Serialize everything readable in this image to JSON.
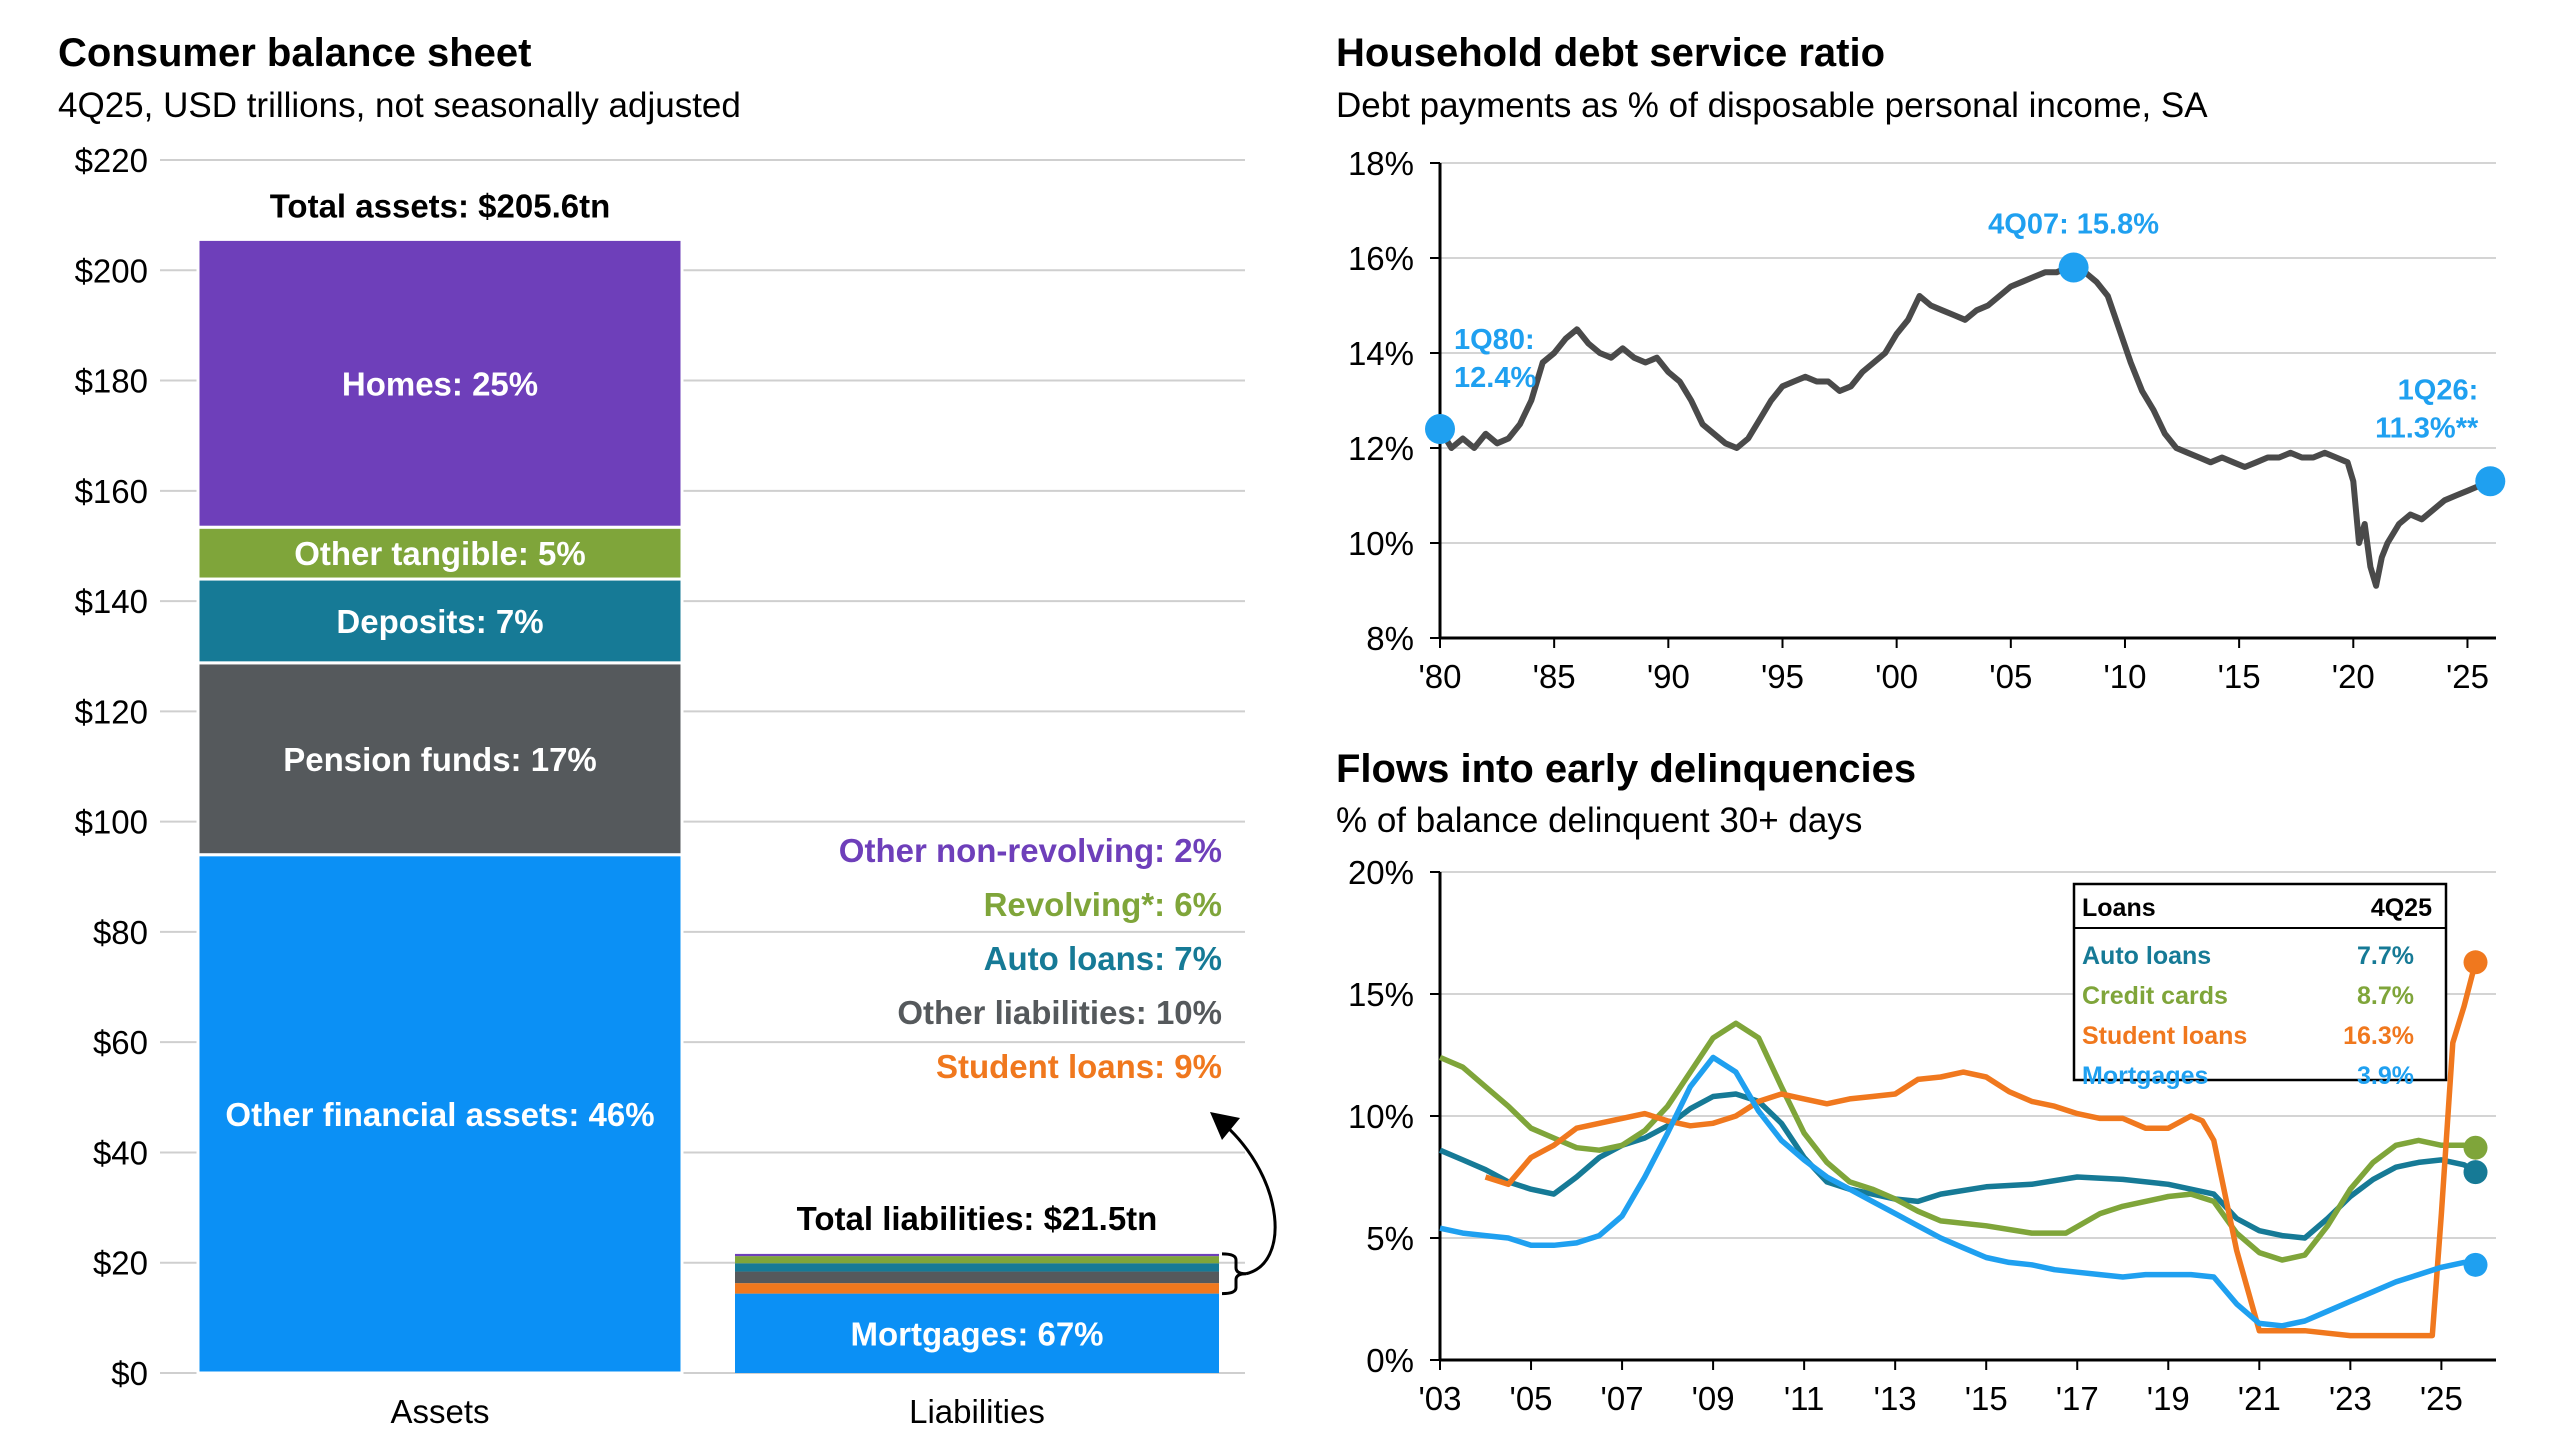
{
  "colors": {
    "purple": "#6e3fba",
    "green": "#7fa53a",
    "teal": "#167a96",
    "gray": "#55595c",
    "blue": "#0b90f5",
    "light_blue": "#1fa0f0",
    "orange": "#f0781e",
    "line_gray": "#4a4a4a",
    "grid": "#d0d0d0"
  },
  "chart_data": [
    {
      "type": "bar",
      "stacked": true,
      "title": "Consumer balance sheet",
      "subtitle": "4Q25, USD trillions, not seasonally adjusted",
      "categories": [
        "Assets",
        "Liabilities"
      ],
      "ylim": [
        0,
        220
      ],
      "ytick_labels": [
        "$0",
        "$20",
        "$40",
        "$60",
        "$80",
        "$100",
        "$120",
        "$140",
        "$160",
        "$180",
        "$200",
        "$220"
      ],
      "yticks": [
        0,
        20,
        40,
        60,
        80,
        100,
        120,
        140,
        160,
        180,
        200,
        220
      ],
      "grid": true,
      "assets_total_label": "Total assets: $205.6tn",
      "liabilities_total_label": "Total liabilities: $21.5tn",
      "assets": [
        {
          "name": "Other financial assets",
          "label": "Other financial assets: 46%",
          "value": 94.0,
          "color": "#0b90f5"
        },
        {
          "name": "Pension funds",
          "label": "Pension funds: 17%",
          "value": 34.8,
          "color": "#55595c"
        },
        {
          "name": "Deposits",
          "label": "Deposits: 7%",
          "value": 15.2,
          "color": "#167a96"
        },
        {
          "name": "Other tangible",
          "label": "Other tangible: 5%",
          "value": 9.4,
          "color": "#7fa53a"
        },
        {
          "name": "Homes",
          "label": "Homes: 25%",
          "value": 52.2,
          "color": "#6e3fba"
        }
      ],
      "liabilities": [
        {
          "name": "Mortgages",
          "label": "Mortgages: 67%",
          "value": 14.4,
          "color": "#0b90f5"
        },
        {
          "name": "Student loans",
          "label": "Student loans: 9%",
          "value": 1.9,
          "color": "#f0781e"
        },
        {
          "name": "Other liabilities",
          "label": "Other liabilities: 10%",
          "value": 2.1,
          "color": "#55595c"
        },
        {
          "name": "Auto loans",
          "label": "Auto loans: 7%",
          "value": 1.5,
          "color": "#167a96"
        },
        {
          "name": "Revolving*",
          "label": "Revolving*: 6%",
          "value": 1.3,
          "color": "#7fa53a"
        },
        {
          "name": "Other non-revolving",
          "label": "Other non-revolving: 2%",
          "value": 0.4,
          "color": "#6e3fba"
        }
      ]
    },
    {
      "type": "line",
      "title": "Household debt service ratio",
      "subtitle": "Debt payments as % of disposable personal income, SA",
      "xlim": [
        1980,
        2026.25
      ],
      "ylim": [
        8,
        18
      ],
      "xticks": [
        1980,
        1985,
        1990,
        1995,
        2000,
        2005,
        2010,
        2015,
        2020,
        2025
      ],
      "xtick_labels": [
        "'80",
        "'85",
        "'90",
        "'95",
        "'00",
        "'05",
        "'10",
        "'15",
        "'20",
        "'25"
      ],
      "yticks": [
        8,
        10,
        12,
        14,
        16,
        18
      ],
      "ytick_labels": [
        "8%",
        "10%",
        "12%",
        "14%",
        "16%",
        "18%"
      ],
      "series": [
        {
          "color": "#4a4a4a",
          "x": [
            1980.0,
            1980.5,
            1981.0,
            1981.5,
            1982.0,
            1982.5,
            1983.0,
            1983.5,
            1984.0,
            1984.5,
            1985.0,
            1985.5,
            1986.0,
            1986.5,
            1987.0,
            1987.5,
            1988.0,
            1988.5,
            1989.0,
            1989.5,
            1990.0,
            1990.5,
            1991.0,
            1991.5,
            1992.0,
            1992.5,
            1993.0,
            1993.5,
            1994.0,
            1994.5,
            1995.0,
            1995.5,
            1996.0,
            1996.5,
            1997.0,
            1997.5,
            1998.0,
            1998.5,
            1999.0,
            1999.5,
            2000.0,
            2000.5,
            2001.0,
            2001.5,
            2002.0,
            2002.5,
            2003.0,
            2003.5,
            2004.0,
            2004.5,
            2005.0,
            2005.5,
            2006.0,
            2006.5,
            2007.0,
            2007.5,
            2007.75,
            2008.25,
            2008.75,
            2009.25,
            2009.75,
            2010.25,
            2010.75,
            2011.25,
            2011.75,
            2012.25,
            2012.75,
            2013.25,
            2013.75,
            2014.25,
            2014.75,
            2015.25,
            2015.75,
            2016.25,
            2016.75,
            2017.25,
            2017.75,
            2018.25,
            2018.75,
            2019.25,
            2019.75,
            2020.0,
            2020.25,
            2020.5,
            2020.75,
            2021.0,
            2021.25,
            2021.5,
            2022.0,
            2022.5,
            2023.0,
            2023.5,
            2024.0,
            2024.5,
            2025.0,
            2025.5,
            2026.0
          ],
          "y": [
            12.4,
            12.0,
            12.2,
            12.0,
            12.3,
            12.1,
            12.2,
            12.5,
            13.0,
            13.8,
            14.0,
            14.3,
            14.5,
            14.2,
            14.0,
            13.9,
            14.1,
            13.9,
            13.8,
            13.9,
            13.6,
            13.4,
            13.0,
            12.5,
            12.3,
            12.1,
            12.0,
            12.2,
            12.6,
            13.0,
            13.3,
            13.4,
            13.5,
            13.4,
            13.4,
            13.2,
            13.3,
            13.6,
            13.8,
            14.0,
            14.4,
            14.7,
            15.2,
            15.0,
            14.9,
            14.8,
            14.7,
            14.9,
            15.0,
            15.2,
            15.4,
            15.5,
            15.6,
            15.7,
            15.7,
            15.8,
            15.8,
            15.7,
            15.5,
            15.2,
            14.5,
            13.8,
            13.2,
            12.8,
            12.3,
            12.0,
            11.9,
            11.8,
            11.7,
            11.8,
            11.7,
            11.6,
            11.7,
            11.8,
            11.8,
            11.9,
            11.8,
            11.8,
            11.9,
            11.8,
            11.7,
            11.3,
            10.0,
            10.4,
            9.5,
            9.1,
            9.7,
            10.0,
            10.4,
            10.6,
            10.5,
            10.7,
            10.9,
            11.0,
            11.1,
            11.2,
            11.3
          ]
        }
      ],
      "annotations": [
        {
          "label_lines": [
            "1Q80:",
            "12.4%"
          ],
          "x": 1980.0,
          "y": 12.4,
          "color": "#1fa0f0"
        },
        {
          "label_lines": [
            "4Q07:  15.8%"
          ],
          "x": 2007.75,
          "y": 15.8,
          "color": "#1fa0f0"
        },
        {
          "label_lines": [
            "1Q26:",
            "11.3%**"
          ],
          "x": 2026.0,
          "y": 11.3,
          "color": "#1fa0f0"
        }
      ]
    },
    {
      "type": "line",
      "title": "Flows into early delinquencies",
      "subtitle": "% of balance delinquent 30+ days",
      "xlim": [
        2003,
        2026.2
      ],
      "ylim": [
        0,
        20
      ],
      "xticks": [
        2003,
        2005,
        2007,
        2009,
        2011,
        2013,
        2015,
        2017,
        2019,
        2021,
        2023,
        2025
      ],
      "xtick_labels": [
        "'03",
        "'05",
        "'07",
        "'09",
        "'11",
        "'13",
        "'15",
        "'17",
        "'19",
        "'21",
        "'23",
        "'25"
      ],
      "yticks": [
        0,
        5,
        10,
        15,
        20
      ],
      "ytick_labels": [
        "0%",
        "5%",
        "10%",
        "15%",
        "20%"
      ],
      "legend": {
        "header": [
          "Loans",
          "4Q25"
        ],
        "rows": [
          {
            "name": "Auto loans",
            "value": "7.7%",
            "color": "#167a96"
          },
          {
            "name": "Credit cards",
            "value": "8.7%",
            "color": "#7fa53a"
          },
          {
            "name": "Student loans",
            "value": "16.3%",
            "color": "#f0781e"
          },
          {
            "name": "Mortgages",
            "value": "3.9%",
            "color": "#1fa0f0"
          }
        ]
      },
      "series": [
        {
          "name": "Auto loans",
          "color": "#167a96",
          "x": [
            2003.0,
            2003.5,
            2004.0,
            2004.5,
            2005.0,
            2005.5,
            2006.0,
            2006.5,
            2007.0,
            2007.5,
            2008.0,
            2008.5,
            2009.0,
            2009.5,
            2010.0,
            2010.5,
            2011.0,
            2011.5,
            2012.0,
            2012.5,
            2013.0,
            2013.5,
            2014.0,
            2015.0,
            2016.0,
            2017.0,
            2018.0,
            2019.0,
            2019.5,
            2020.0,
            2020.5,
            2021.0,
            2021.5,
            2022.0,
            2022.5,
            2023.0,
            2023.5,
            2024.0,
            2024.5,
            2025.0,
            2025.5,
            2025.75
          ],
          "y": [
            8.6,
            8.2,
            7.8,
            7.3,
            7.0,
            6.8,
            7.5,
            8.3,
            8.8,
            9.1,
            9.6,
            10.3,
            10.8,
            10.9,
            10.6,
            9.7,
            8.3,
            7.3,
            7.0,
            6.8,
            6.6,
            6.5,
            6.8,
            7.1,
            7.2,
            7.5,
            7.4,
            7.2,
            7.0,
            6.8,
            5.8,
            5.3,
            5.1,
            5.0,
            5.8,
            6.7,
            7.4,
            7.9,
            8.1,
            8.2,
            8.0,
            7.7
          ]
        },
        {
          "name": "Credit cards",
          "color": "#7fa53a",
          "x": [
            2003.0,
            2003.5,
            2004.0,
            2004.5,
            2005.0,
            2005.5,
            2006.0,
            2006.5,
            2007.0,
            2007.5,
            2008.0,
            2008.5,
            2009.0,
            2009.5,
            2010.0,
            2010.5,
            2011.0,
            2011.5,
            2012.0,
            2012.5,
            2013.0,
            2013.5,
            2014.0,
            2015.0,
            2016.0,
            2016.75,
            2017.5,
            2018.0,
            2019.0,
            2019.5,
            2020.0,
            2020.5,
            2021.0,
            2021.5,
            2022.0,
            2022.5,
            2023.0,
            2023.5,
            2024.0,
            2024.5,
            2025.0,
            2025.5,
            2025.75
          ],
          "y": [
            12.4,
            12.0,
            11.2,
            10.4,
            9.5,
            9.1,
            8.7,
            8.6,
            8.8,
            9.4,
            10.4,
            11.8,
            13.2,
            13.8,
            13.2,
            11.2,
            9.3,
            8.1,
            7.3,
            7.0,
            6.6,
            6.1,
            5.7,
            5.5,
            5.2,
            5.2,
            6.0,
            6.3,
            6.7,
            6.8,
            6.5,
            5.2,
            4.4,
            4.1,
            4.3,
            5.5,
            7.0,
            8.1,
            8.8,
            9.0,
            8.8,
            8.8,
            8.7
          ]
        },
        {
          "name": "Student loans",
          "color": "#f0781e",
          "x": [
            2004.0,
            2004.5,
            2005.0,
            2005.5,
            2006.0,
            2006.5,
            2007.0,
            2007.5,
            2008.0,
            2008.5,
            2009.0,
            2009.5,
            2010.0,
            2010.5,
            2011.0,
            2011.5,
            2012.0,
            2012.5,
            2013.0,
            2013.5,
            2014.0,
            2014.5,
            2015.0,
            2015.5,
            2016.0,
            2016.5,
            2017.0,
            2017.5,
            2018.0,
            2018.5,
            2019.0,
            2019.5,
            2019.75,
            2020.0,
            2020.5,
            2021.0,
            2021.5,
            2022.0,
            2022.5,
            2023.0,
            2023.5,
            2024.0,
            2024.5,
            2024.8,
            2025.0,
            2025.25,
            2025.5,
            2025.75
          ],
          "y": [
            7.5,
            7.2,
            8.3,
            8.8,
            9.5,
            9.7,
            9.9,
            10.1,
            9.8,
            9.6,
            9.7,
            10.0,
            10.6,
            10.9,
            10.7,
            10.5,
            10.7,
            10.8,
            10.9,
            11.5,
            11.6,
            11.8,
            11.6,
            11.0,
            10.6,
            10.4,
            10.1,
            9.9,
            9.9,
            9.5,
            9.5,
            10.0,
            9.8,
            9.0,
            4.5,
            1.2,
            1.2,
            1.2,
            1.1,
            1.0,
            1.0,
            1.0,
            1.0,
            1.0,
            6.0,
            13.0,
            14.5,
            16.3
          ]
        },
        {
          "name": "Mortgages",
          "color": "#1fa0f0",
          "x": [
            2003.0,
            2003.5,
            2004.0,
            2004.5,
            2005.0,
            2005.5,
            2006.0,
            2006.5,
            2007.0,
            2007.5,
            2008.0,
            2008.5,
            2009.0,
            2009.5,
            2010.0,
            2010.5,
            2011.0,
            2011.5,
            2012.0,
            2012.5,
            2013.0,
            2013.5,
            2014.0,
            2014.5,
            2015.0,
            2015.5,
            2016.0,
            2016.5,
            2017.0,
            2017.5,
            2018.0,
            2018.5,
            2019.0,
            2019.5,
            2020.0,
            2020.5,
            2021.0,
            2021.5,
            2022.0,
            2022.5,
            2023.0,
            2023.5,
            2024.0,
            2024.5,
            2025.0,
            2025.5,
            2025.75
          ],
          "y": [
            5.4,
            5.2,
            5.1,
            5.0,
            4.7,
            4.7,
            4.8,
            5.1,
            5.9,
            7.5,
            9.3,
            11.2,
            12.4,
            11.8,
            10.2,
            9.0,
            8.2,
            7.5,
            7.0,
            6.5,
            6.0,
            5.5,
            5.0,
            4.6,
            4.2,
            4.0,
            3.9,
            3.7,
            3.6,
            3.5,
            3.4,
            3.5,
            3.5,
            3.5,
            3.4,
            2.3,
            1.5,
            1.4,
            1.6,
            2.0,
            2.4,
            2.8,
            3.2,
            3.5,
            3.8,
            4.0,
            3.9
          ]
        }
      ]
    }
  ]
}
